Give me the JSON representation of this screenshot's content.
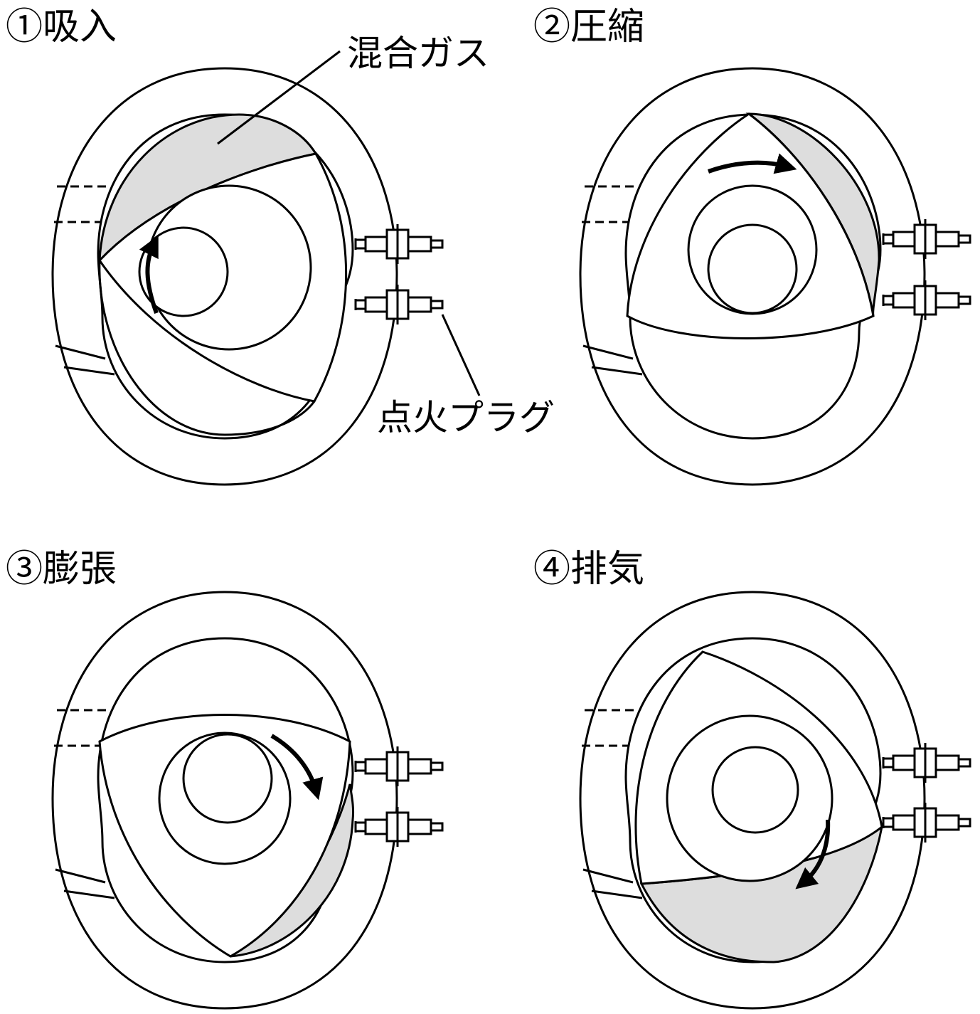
{
  "stages": [
    {
      "label": "①吸入"
    },
    {
      "label": "②圧縮"
    },
    {
      "label": "③膨張"
    },
    {
      "label": "④排気"
    }
  ],
  "callouts": {
    "mixture_gas": "混合ガス",
    "spark_plug": "点火プラグ"
  },
  "colors": {
    "stroke": "#000000",
    "gas_fill": "#dddddd",
    "background": "#ffffff"
  }
}
